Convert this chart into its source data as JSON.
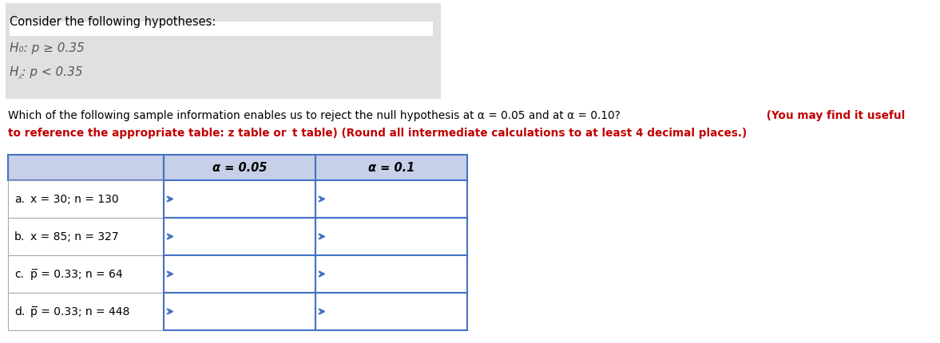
{
  "title_box_text": "Consider the following hypotheses:",
  "h0_text": "H₀: p ≥ 0.35",
  "ha_text": "H⁁: p < 0.35",
  "rows": [
    [
      "a.",
      "x = 30; n = 130"
    ],
    [
      "b.",
      "x = 85; n = 327"
    ],
    [
      "c.",
      "p̅ = 0.33; n = 64"
    ],
    [
      "d.",
      "p̅ = 0.33; n = 448"
    ]
  ],
  "col_headers": [
    "α = 0.05",
    "α = 0.1"
  ],
  "header_bg": "#c8cfe8",
  "table_border_color": "#4472c4",
  "text_color_normal": "#000000",
  "text_color_red": "#c00000",
  "text_color_hyp": "#595959",
  "bg_color": "#ffffff",
  "q_line1_normal": "Which of the following sample information enables us to reject the null hypothesis at α = 0.05 and at α = 0.10?",
  "q_line1_bold": " (You may find it useful",
  "q_line2": "to reference the appropriate table: z table or  t table) (Round all intermediate calculations to at least 4 decimal places.)"
}
